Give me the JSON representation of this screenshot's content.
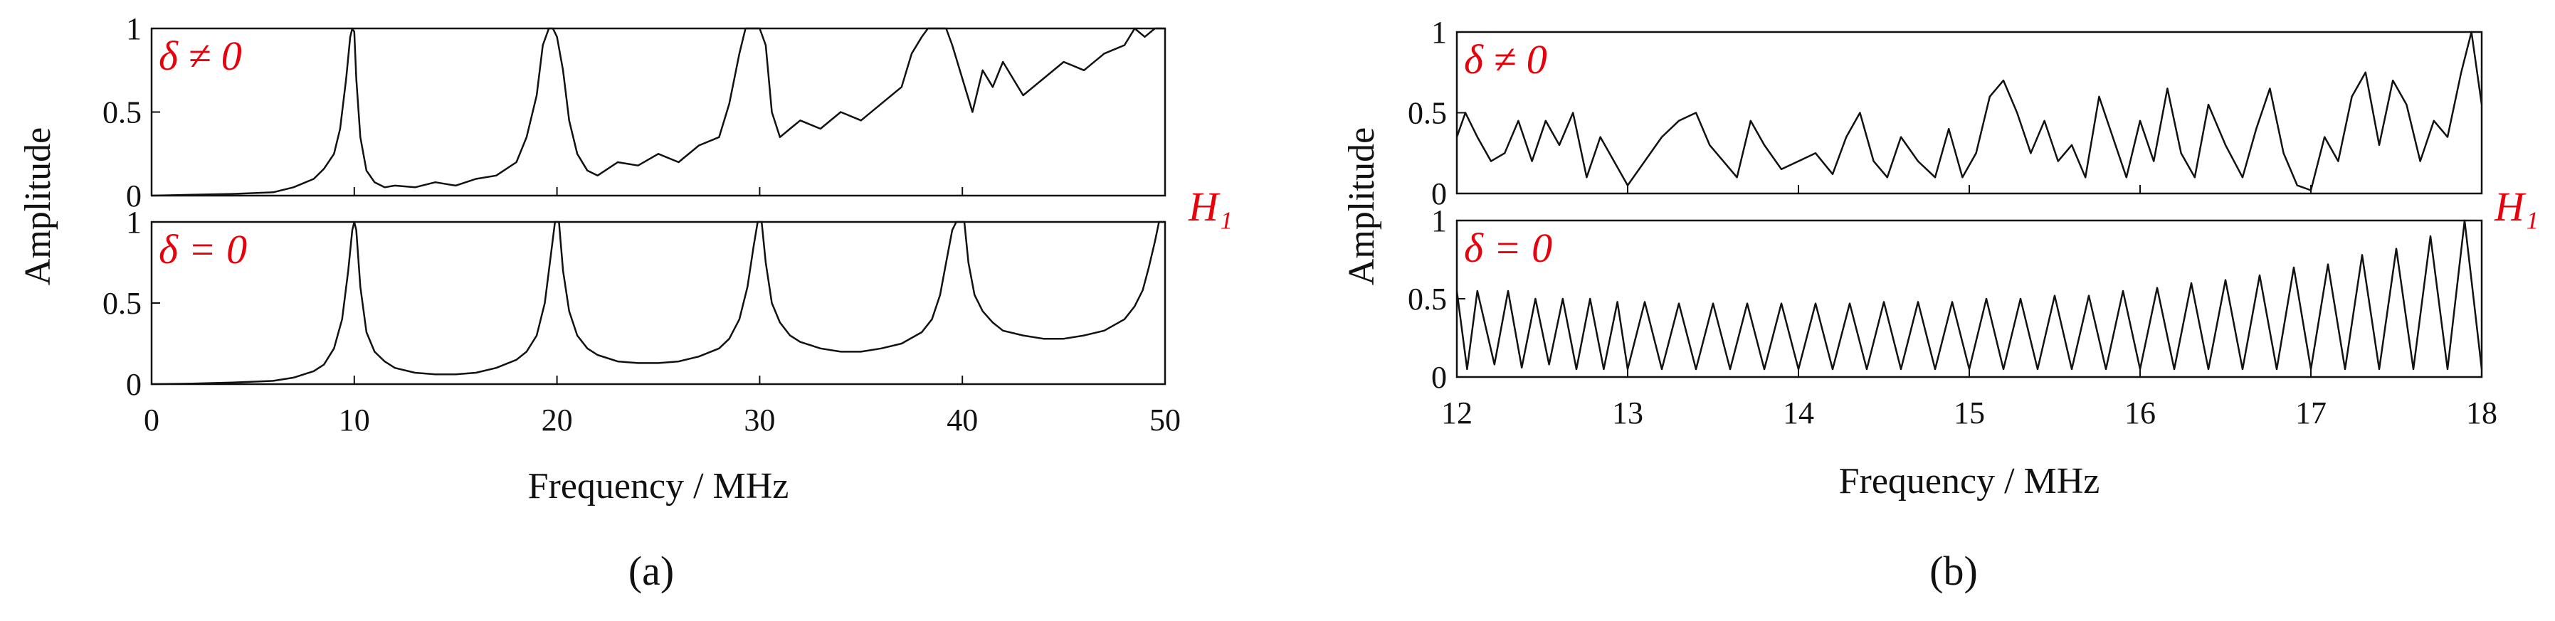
{
  "colors": {
    "annotation": "#e8000b",
    "trace": "#111111",
    "axis": "#111111"
  },
  "figure": {
    "captions": [
      "(a)",
      "(b)"
    ]
  },
  "chart_data": [
    {
      "type": "line",
      "panel": "a",
      "xlabel": "Frequency / MHz",
      "ylabel": "Amplitude",
      "xlim": [
        0,
        50
      ],
      "xticks": [
        "0",
        "10",
        "20",
        "30",
        "40",
        "50"
      ],
      "subplots": [
        {
          "label": "δ ≠ 0",
          "ylim": [
            0,
            1
          ],
          "yticks": [
            "0",
            "0.5",
            "1"
          ],
          "side_label": "H₁",
          "x": [
            0,
            2,
            4,
            6,
            7,
            8,
            8.5,
            9,
            9.3,
            9.6,
            9.8,
            9.9,
            10,
            10.1,
            10.3,
            10.6,
            11,
            11.5,
            12,
            13,
            14,
            15,
            16,
            17,
            18,
            18.5,
            19,
            19.3,
            19.6,
            19.8,
            20,
            20.3,
            20.6,
            21,
            21.5,
            22,
            23,
            24,
            25,
            26,
            27,
            28,
            28.5,
            29,
            29.3,
            29.6,
            29.8,
            30,
            30.3,
            30.6,
            31,
            31.5,
            32,
            33,
            34,
            35,
            36,
            37,
            37.5,
            38,
            38.3,
            38.6,
            38.9,
            39.2,
            39.5,
            40,
            40.5,
            41,
            41.5,
            42,
            43,
            44,
            45,
            46,
            47,
            48,
            48.5,
            49,
            49.5,
            50
          ],
          "y": [
            0,
            0.005,
            0.01,
            0.02,
            0.05,
            0.1,
            0.16,
            0.25,
            0.4,
            0.7,
            0.95,
            1,
            0.98,
            0.7,
            0.35,
            0.15,
            0.08,
            0.05,
            0.06,
            0.05,
            0.08,
            0.06,
            0.1,
            0.12,
            0.2,
            0.35,
            0.6,
            0.9,
            1,
            1,
            0.95,
            0.75,
            0.45,
            0.25,
            0.15,
            0.12,
            0.2,
            0.18,
            0.25,
            0.2,
            0.3,
            0.35,
            0.55,
            0.85,
            1,
            1,
            1,
            1,
            0.9,
            0.5,
            0.35,
            0.4,
            0.45,
            0.4,
            0.5,
            0.45,
            0.55,
            0.65,
            0.85,
            0.95,
            1,
            1,
            1,
            1,
            0.9,
            0.7,
            0.5,
            0.75,
            0.65,
            0.8,
            0.6,
            0.7,
            0.8,
            0.75,
            0.85,
            0.9,
            1,
            0.95,
            1,
            1
          ]
        },
        {
          "label": "δ = 0",
          "ylim": [
            0,
            1
          ],
          "yticks": [
            "0",
            "0.5",
            "1"
          ],
          "x": [
            0,
            2,
            4,
            6,
            7,
            8,
            8.5,
            9,
            9.4,
            9.7,
            9.9,
            10,
            10.1,
            10.3,
            10.6,
            11,
            11.5,
            12,
            13,
            14,
            15,
            16,
            17,
            18,
            18.5,
            19,
            19.4,
            19.7,
            19.9,
            20,
            20.1,
            20.3,
            20.6,
            21,
            21.5,
            22,
            23,
            24,
            25,
            26,
            27,
            28,
            28.5,
            29,
            29.4,
            29.7,
            29.9,
            30,
            30.1,
            30.3,
            30.6,
            31,
            31.5,
            32,
            33,
            34,
            35,
            36,
            37,
            38,
            38.5,
            38.9,
            39.2,
            39.5,
            39.7,
            39.9,
            40,
            40.1,
            40.3,
            40.6,
            41,
            41.5,
            42,
            43,
            44,
            45,
            46,
            47,
            48,
            48.5,
            48.9,
            49.2,
            49.5,
            49.7,
            50
          ],
          "y": [
            0,
            0.003,
            0.01,
            0.02,
            0.04,
            0.08,
            0.12,
            0.22,
            0.4,
            0.7,
            0.95,
            1,
            0.95,
            0.6,
            0.32,
            0.2,
            0.14,
            0.1,
            0.07,
            0.06,
            0.06,
            0.07,
            0.1,
            0.15,
            0.2,
            0.3,
            0.5,
            0.8,
            1,
            1,
            1,
            0.7,
            0.45,
            0.3,
            0.22,
            0.18,
            0.14,
            0.13,
            0.13,
            0.14,
            0.17,
            0.22,
            0.28,
            0.4,
            0.6,
            0.85,
            1,
            1,
            1,
            0.75,
            0.5,
            0.38,
            0.3,
            0.26,
            0.22,
            0.2,
            0.2,
            0.22,
            0.25,
            0.32,
            0.4,
            0.55,
            0.75,
            0.95,
            1,
            1,
            1,
            1,
            0.75,
            0.55,
            0.45,
            0.38,
            0.33,
            0.3,
            0.28,
            0.28,
            0.3,
            0.33,
            0.4,
            0.48,
            0.58,
            0.72,
            0.88,
            1,
            1
          ]
        }
      ]
    },
    {
      "type": "line",
      "panel": "b",
      "xlabel": "Frequency / MHz",
      "ylabel": "Amplitude",
      "xlim": [
        12,
        18
      ],
      "xticks": [
        "12",
        "13",
        "14",
        "15",
        "16",
        "17",
        "18"
      ],
      "subplots": [
        {
          "label": "δ ≠ 0",
          "ylim": [
            0,
            1
          ],
          "yticks": [
            "0",
            "0.5",
            "1"
          ],
          "side_label": "H₁",
          "x": [
            12,
            12.05,
            12.12,
            12.2,
            12.28,
            12.36,
            12.44,
            12.52,
            12.6,
            12.68,
            12.76,
            12.84,
            12.92,
            13,
            13.1,
            13.2,
            13.3,
            13.4,
            13.48,
            13.56,
            13.64,
            13.72,
            13.8,
            13.9,
            14,
            14.1,
            14.2,
            14.28,
            14.36,
            14.44,
            14.52,
            14.6,
            14.7,
            14.8,
            14.88,
            14.96,
            15.04,
            15.12,
            15.2,
            15.28,
            15.36,
            15.44,
            15.52,
            15.6,
            15.68,
            15.76,
            15.84,
            15.92,
            16,
            16.08,
            16.16,
            16.24,
            16.32,
            16.4,
            16.5,
            16.6,
            16.68,
            16.76,
            16.84,
            16.92,
            17,
            17.08,
            17.16,
            17.24,
            17.32,
            17.4,
            17.48,
            17.56,
            17.64,
            17.72,
            17.8,
            17.88,
            17.94,
            18
          ],
          "y": [
            0.35,
            0.5,
            0.35,
            0.2,
            0.25,
            0.45,
            0.2,
            0.45,
            0.3,
            0.5,
            0.1,
            0.35,
            0.2,
            0.05,
            0.2,
            0.35,
            0.45,
            0.5,
            0.3,
            0.2,
            0.1,
            0.45,
            0.3,
            0.15,
            0.2,
            0.25,
            0.12,
            0.35,
            0.5,
            0.2,
            0.1,
            0.35,
            0.2,
            0.1,
            0.4,
            0.1,
            0.25,
            0.6,
            0.7,
            0.5,
            0.25,
            0.45,
            0.2,
            0.3,
            0.1,
            0.6,
            0.35,
            0.1,
            0.45,
            0.2,
            0.65,
            0.25,
            0.1,
            0.55,
            0.3,
            0.1,
            0.4,
            0.65,
            0.25,
            0.05,
            0.02,
            0.35,
            0.2,
            0.6,
            0.75,
            0.3,
            0.7,
            0.55,
            0.2,
            0.45,
            0.35,
            0.75,
            1,
            0.55
          ]
        },
        {
          "label": "δ = 0",
          "ylim": [
            0,
            1
          ],
          "yticks": [
            "0",
            "0.5",
            "1"
          ],
          "x": [
            12,
            12.06,
            12.12,
            12.22,
            12.3,
            12.38,
            12.46,
            12.54,
            12.62,
            12.7,
            12.78,
            12.86,
            12.94,
            13,
            13.1,
            13.2,
            13.3,
            13.4,
            13.5,
            13.6,
            13.7,
            13.8,
            13.9,
            14,
            14.1,
            14.2,
            14.3,
            14.4,
            14.5,
            14.6,
            14.7,
            14.8,
            14.9,
            15,
            15.1,
            15.2,
            15.3,
            15.4,
            15.5,
            15.6,
            15.7,
            15.8,
            15.9,
            16,
            16.1,
            16.2,
            16.3,
            16.4,
            16.5,
            16.6,
            16.7,
            16.8,
            16.9,
            17,
            17.1,
            17.2,
            17.3,
            17.4,
            17.5,
            17.6,
            17.7,
            17.8,
            17.9,
            18
          ],
          "y": [
            0.55,
            0.05,
            0.55,
            0.08,
            0.55,
            0.06,
            0.5,
            0.08,
            0.5,
            0.05,
            0.5,
            0.05,
            0.48,
            0.05,
            0.48,
            0.05,
            0.47,
            0.05,
            0.47,
            0.05,
            0.47,
            0.05,
            0.47,
            0.05,
            0.47,
            0.05,
            0.47,
            0.05,
            0.48,
            0.05,
            0.48,
            0.05,
            0.48,
            0.05,
            0.5,
            0.05,
            0.5,
            0.05,
            0.52,
            0.05,
            0.52,
            0.05,
            0.55,
            0.05,
            0.57,
            0.05,
            0.6,
            0.05,
            0.62,
            0.05,
            0.65,
            0.05,
            0.7,
            0.05,
            0.72,
            0.05,
            0.78,
            0.05,
            0.82,
            0.05,
            0.9,
            0.05,
            1,
            0.05
          ]
        }
      ]
    }
  ]
}
